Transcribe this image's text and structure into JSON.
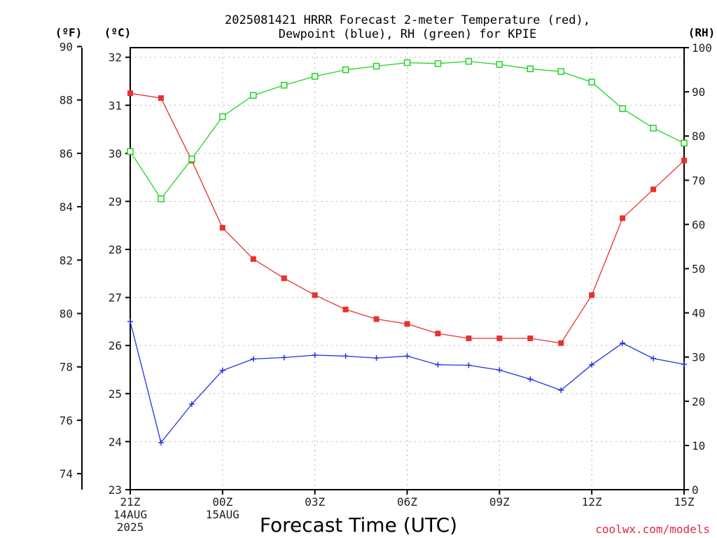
{
  "chart_data": {
    "type": "line",
    "title_lines": [
      "2025081421 HRRR Forecast 2-meter Temperature (red),",
      "Dewpoint (blue), RH (green) for KPIE"
    ],
    "xlabel": "Forecast Time (UTC)",
    "credit": "coolwx.com/models",
    "units": {
      "fahrenheit": "(ºF)",
      "celsius": "(ºC)",
      "rh": "(RH)"
    },
    "x_ticks": [
      {
        "hour": 0,
        "lines": [
          "21Z",
          "14AUG",
          "2025"
        ]
      },
      {
        "hour": 3,
        "lines": [
          "00Z",
          "15AUG"
        ]
      },
      {
        "hour": 6,
        "lines": [
          "03Z"
        ]
      },
      {
        "hour": 9,
        "lines": [
          "06Z"
        ]
      },
      {
        "hour": 12,
        "lines": [
          "09Z"
        ]
      },
      {
        "hour": 15,
        "lines": [
          "12Z"
        ]
      },
      {
        "hour": 18,
        "lines": [
          "15Z"
        ]
      }
    ],
    "xlim": [
      0,
      18
    ],
    "celsius_axis": {
      "ylim": [
        23,
        32.2
      ],
      "ticks": [
        23,
        24,
        25,
        26,
        27,
        28,
        29,
        30,
        31,
        32
      ]
    },
    "fahrenheit_axis": {
      "ylim": [
        73.4,
        89.96
      ],
      "ticks": [
        74,
        76,
        78,
        80,
        82,
        84,
        86,
        88,
        90
      ]
    },
    "rh_axis": {
      "ylim": [
        0,
        100
      ],
      "ticks": [
        0,
        10,
        20,
        30,
        40,
        50,
        60,
        70,
        80,
        90,
        100
      ]
    },
    "grid": true,
    "series": [
      {
        "name": "Temperature",
        "color": "#e8312f",
        "marker": "filled-square",
        "axis": "celsius",
        "values": [
          31.25,
          31.15,
          29.85,
          28.45,
          27.8,
          27.4,
          27.05,
          26.75,
          26.55,
          26.45,
          26.25,
          26.15,
          26.15,
          26.15,
          26.05,
          27.05,
          28.65,
          29.25,
          29.85
        ]
      },
      {
        "name": "Dewpoint",
        "color": "#2432e0",
        "marker": "plus",
        "axis": "celsius",
        "values": [
          26.5,
          23.98,
          24.78,
          25.48,
          25.72,
          25.75,
          25.8,
          25.78,
          25.74,
          25.78,
          25.6,
          25.59,
          25.49,
          25.3,
          25.07,
          25.6,
          26.05,
          25.73,
          25.61
        ]
      },
      {
        "name": "RH",
        "color": "#21d321",
        "marker": "open-square",
        "axis": "rh",
        "values": [
          76.5,
          65.8,
          74.8,
          84.4,
          89.2,
          91.5,
          93.5,
          95.0,
          95.8,
          96.6,
          96.4,
          96.9,
          96.2,
          95.2,
          94.6,
          92.2,
          86.2,
          81.8,
          78.4
        ]
      }
    ]
  }
}
